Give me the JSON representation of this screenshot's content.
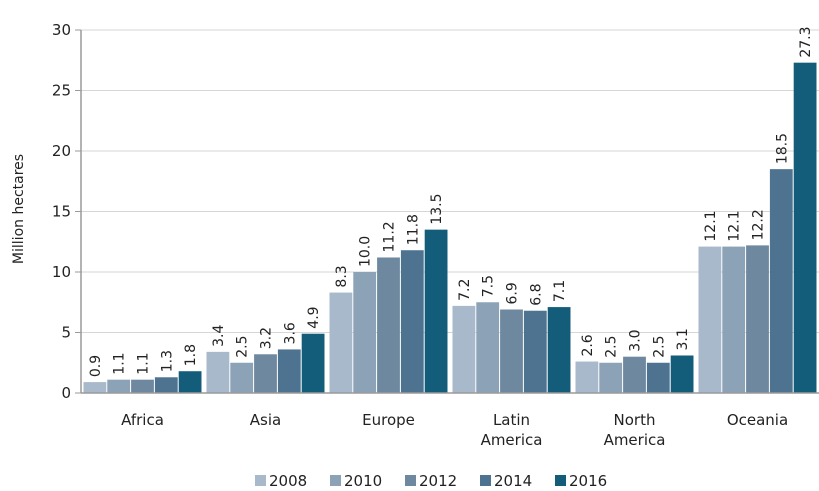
{
  "chart_data": {
    "type": "bar",
    "title": "",
    "xlabel": "",
    "ylabel": "Million hectares",
    "ylim": [
      0,
      30
    ],
    "yticks": [
      "0",
      "5",
      "10",
      "15",
      "20",
      "25",
      "30"
    ],
    "grid": true,
    "legend_position": "bottom",
    "categories": [
      [
        "Africa"
      ],
      [
        "Asia"
      ],
      [
        "Europe"
      ],
      [
        "Latin",
        "America"
      ],
      [
        "North",
        "America"
      ],
      [
        "Oceania"
      ]
    ],
    "series": [
      {
        "name": "2008",
        "color": "#a7b9ca",
        "values": [
          0.9,
          3.4,
          8.3,
          7.2,
          2.6,
          12.1
        ],
        "labels": [
          "0.9",
          "3.4",
          "8.3",
          "7.2",
          "2.6",
          "12.1"
        ]
      },
      {
        "name": "2010",
        "color": "#8ca2b7",
        "values": [
          1.1,
          2.5,
          10.0,
          7.5,
          2.5,
          12.1
        ],
        "labels": [
          "1.1",
          "2.5",
          "10.0",
          "7.5",
          "2.5",
          "12.1"
        ]
      },
      {
        "name": "2012",
        "color": "#6d889f",
        "values": [
          1.1,
          3.2,
          11.2,
          6.9,
          3.0,
          12.2
        ],
        "labels": [
          "1.1",
          "3.2",
          "11.2",
          "6.9",
          "3.0",
          "12.2"
        ]
      },
      {
        "name": "2014",
        "color": "#4e7391",
        "values": [
          1.3,
          3.6,
          11.8,
          6.8,
          2.5,
          18.5
        ],
        "labels": [
          "1.3",
          "3.6",
          "11.8",
          "6.8",
          "2.5",
          "18.5"
        ]
      },
      {
        "name": "2016",
        "color": "#145d7a",
        "values": [
          1.8,
          4.9,
          13.5,
          7.1,
          3.1,
          27.3
        ],
        "labels": [
          "1.8",
          "4.9",
          "13.5",
          "7.1",
          "3.1",
          "27.3"
        ]
      }
    ]
  }
}
